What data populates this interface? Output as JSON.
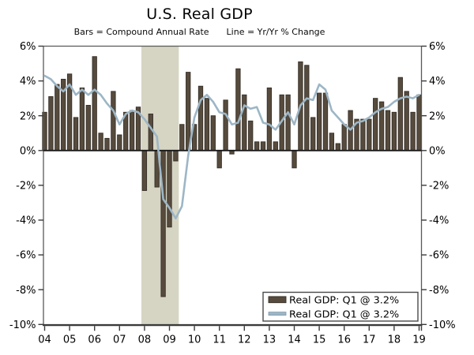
{
  "title": "U.S. Real GDP",
  "subtitle": {
    "bars": "Bars = Compound Annual Rate",
    "line": "Line = Yr/Yr % Change"
  },
  "legend": {
    "position": "bottom-right",
    "entries": [
      {
        "swatch": "bar-swatch",
        "label": "Real GDP: Q1 @ 3.2%"
      },
      {
        "swatch": "line-swatch",
        "label": "Real GDP: Q1 @ 3.2%"
      }
    ]
  },
  "colors": {
    "background": "#ffffff",
    "bar_fill": "#564b3d",
    "bar_edge": "#362f27",
    "line": "#9db6c6",
    "line_swatch_edge": "#7e98aa",
    "recession_band": "#d6d5c4",
    "border": "#595959",
    "axis": "#3a3a3a",
    "zero_line": "#1a1a1a",
    "legend_border": "#4a4a4a",
    "text": "#000000"
  },
  "chart_data": {
    "type": "bar",
    "title": "U.S. Real GDP",
    "subtitle": "Bars = Compound Annual Rate    Line = Yr/Yr % Change",
    "x_start": "2004Q1",
    "x_end": "2019Q1",
    "quarters_per_year": 4,
    "categories": [
      "04",
      "05",
      "06",
      "07",
      "08",
      "09",
      "10",
      "11",
      "12",
      "13",
      "14",
      "15",
      "16",
      "17",
      "18",
      "19"
    ],
    "ylim": [
      -10,
      6
    ],
    "y_tick_step": 2,
    "y_ticks": [
      6,
      4,
      2,
      0,
      -2,
      -4,
      -6,
      -8,
      -10
    ],
    "y_tick_labels": [
      "6%",
      "4%",
      "2%",
      "0%",
      "-2%",
      "-4%",
      "-6%",
      "-8%",
      "-10%"
    ],
    "grid": "zero-line-only",
    "legend_position": "bottom-right",
    "recession_band": {
      "start_quarter": "2008Q1",
      "end_quarter": "2009Q2",
      "start_index": 16,
      "end_index": 21
    },
    "series": [
      {
        "name": "Real GDP: Q1 @ 3.2%",
        "type": "bar",
        "unit": "percent",
        "values": [
          2.2,
          3.1,
          3.8,
          4.1,
          4.4,
          1.9,
          3.6,
          2.6,
          5.4,
          1.0,
          0.7,
          3.4,
          0.9,
          2.2,
          2.3,
          2.5,
          -2.3,
          2.1,
          -2.1,
          -8.4,
          -4.4,
          -0.6,
          1.5,
          4.5,
          1.5,
          3.7,
          3.0,
          2.0,
          -1.0,
          2.9,
          -0.2,
          4.7,
          3.2,
          1.7,
          0.5,
          0.5,
          3.6,
          0.5,
          3.2,
          3.2,
          -1.0,
          5.1,
          4.9,
          1.9,
          3.3,
          3.3,
          1.0,
          0.4,
          1.5,
          2.3,
          1.8,
          1.8,
          1.8,
          3.0,
          2.8,
          2.3,
          2.2,
          4.2,
          3.4,
          2.2,
          3.2
        ]
      },
      {
        "name": "Real GDP: Q1 @ 3.2%",
        "type": "line",
        "unit": "percent",
        "values": [
          4.3,
          4.1,
          3.7,
          3.4,
          3.8,
          3.2,
          3.5,
          3.2,
          3.5,
          3.2,
          2.7,
          2.3,
          1.5,
          2.1,
          2.3,
          2.2,
          1.8,
          1.3,
          0.8,
          -2.8,
          -3.3,
          -3.9,
          -3.2,
          -0.3,
          1.9,
          2.9,
          3.2,
          2.8,
          2.2,
          2.1,
          1.5,
          1.6,
          2.6,
          2.4,
          2.5,
          1.6,
          1.5,
          1.2,
          1.7,
          2.2,
          1.5,
          2.6,
          3.0,
          2.9,
          3.8,
          3.5,
          2.3,
          1.9,
          1.5,
          1.2,
          1.6,
          1.7,
          1.9,
          2.2,
          2.4,
          2.5,
          2.8,
          3.0,
          3.1,
          3.0,
          3.2
        ]
      }
    ]
  }
}
